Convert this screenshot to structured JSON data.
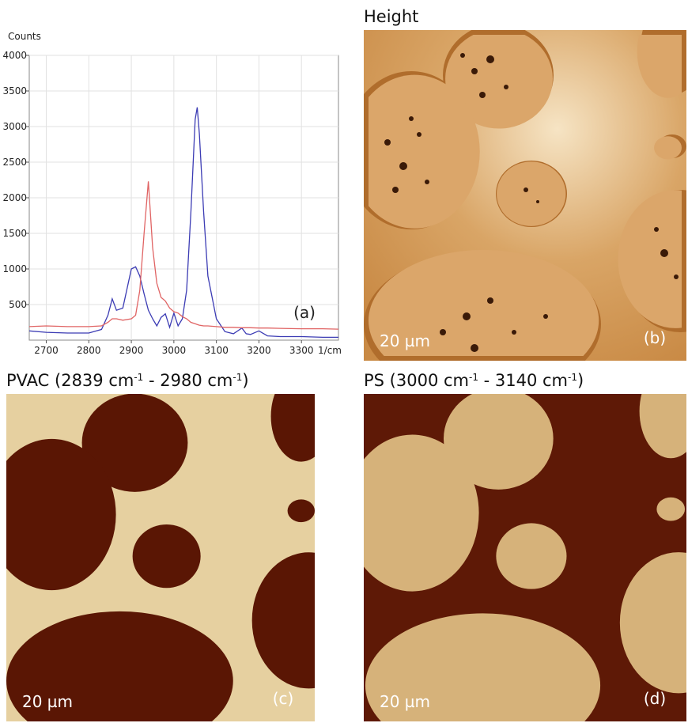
{
  "chart_data": {
    "type": "line",
    "y_label": "Counts",
    "x_label": "1/cm",
    "annotation": "(a)",
    "x": [
      2660,
      2700,
      2750,
      2800,
      2830,
      2845,
      2855,
      2865,
      2880,
      2900,
      2910,
      2920,
      2930,
      2940,
      2950,
      2960,
      2970,
      2980,
      2990,
      3000,
      3010,
      3020,
      3030,
      3040,
      3050,
      3055,
      3060,
      3070,
      3080,
      3100,
      3120,
      3140,
      3160,
      3170,
      3180,
      3200,
      3220,
      3250,
      3300,
      3350,
      3387
    ],
    "series": [
      {
        "color": "#3c3cb4",
        "values": [
          130,
          110,
          100,
          100,
          150,
          350,
          580,
          420,
          450,
          1000,
          1030,
          900,
          650,
          420,
          300,
          200,
          320,
          370,
          180,
          380,
          200,
          300,
          700,
          1800,
          3100,
          3270,
          2900,
          1800,
          900,
          300,
          120,
          90,
          170,
          90,
          80,
          130,
          60,
          50,
          50,
          40,
          40
        ]
      },
      {
        "color": "#e06464",
        "values": [
          190,
          200,
          190,
          190,
          200,
          250,
          300,
          300,
          280,
          300,
          350,
          700,
          1500,
          2230,
          1300,
          800,
          600,
          550,
          450,
          400,
          380,
          330,
          300,
          250,
          230,
          220,
          210,
          200,
          200,
          190,
          180,
          180,
          175,
          175,
          175,
          170,
          170,
          165,
          160,
          160,
          155
        ]
      }
    ],
    "xlim": [
      2660,
      3387
    ],
    "ylim": [
      0,
      4000
    ],
    "xticks": [
      2700,
      2800,
      2900,
      3000,
      3100,
      3200,
      3300
    ],
    "yticks": [
      500,
      1000,
      1500,
      2000,
      2500,
      3000,
      3500,
      4000
    ],
    "grid": true
  },
  "panels": [
    {
      "title_parts": [
        "Height"
      ],
      "scale_bar": "20 µm",
      "label": "(b)"
    },
    {
      "title_parts": [
        "PVAC (2839 cm",
        "-1",
        " - 2980 cm",
        "-1",
        ")"
      ],
      "scale_bar": "20 µm",
      "label": "(c)"
    },
    {
      "title_parts": [
        "PS (3000 cm",
        "-1",
        " - 3140 cm",
        "-1",
        ")"
      ],
      "scale_bar": "20 µm",
      "label": "(d)"
    }
  ]
}
